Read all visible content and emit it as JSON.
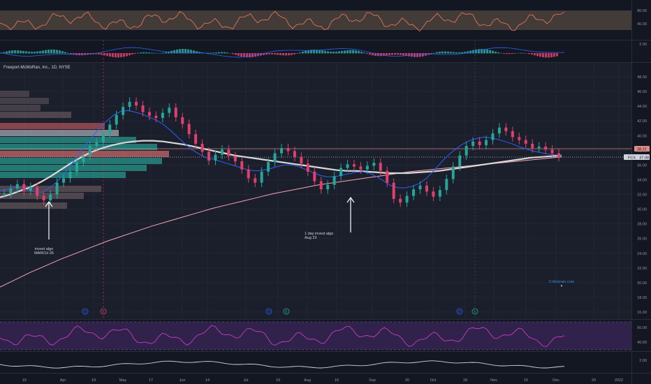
{
  "chart_data": {
    "type": "candlestick",
    "title": "Freeport-McMoRan, Inc., 1D, NYSE",
    "x_labels": [
      "15",
      "Apr",
      "19",
      "May",
      "17",
      "Jun",
      "14",
      "Jul",
      "19",
      "Aug",
      "16",
      "Sep",
      "20",
      "Oct",
      "18",
      "Nov",
      "15",
      "Dec",
      "20",
      "2022"
    ],
    "y_axis": {
      "ticks": [
        "48.00",
        "46.00",
        "44.00",
        "42.00",
        "40.00",
        "38.00",
        "36.00",
        "34.00",
        "32.00",
        "30.00",
        "28.00",
        "26.00",
        "24.00",
        "22.00",
        "20.00",
        "18.00",
        "16.00"
      ],
      "ylim": [
        16,
        48
      ]
    },
    "price_close": [
      32.1,
      32.8,
      33.4,
      32.5,
      33.0,
      31.8,
      31.2,
      32.0,
      33.6,
      34.2,
      35.1,
      36.4,
      37.2,
      38.6,
      39.1,
      40.3,
      41.5,
      42.8,
      43.9,
      44.6,
      44.1,
      43.2,
      42.7,
      42.4,
      43.1,
      43.8,
      42.5,
      41.6,
      40.2,
      38.9,
      37.8,
      36.6,
      37.4,
      38.1,
      37.2,
      36.5,
      35.4,
      34.2,
      33.6,
      35.1,
      36.4,
      37.6,
      38.3,
      37.9,
      37.1,
      36.2,
      35.1,
      33.8,
      32.7,
      33.3,
      34.5,
      35.6,
      36.1,
      35.8,
      35.4,
      35.9,
      36.3,
      35.2,
      33.6,
      31.4,
      30.9,
      31.8,
      32.7,
      33.2,
      32.4,
      31.7,
      32.6,
      34.1,
      35.8,
      37.3,
      38.6,
      39.2,
      38.7,
      39.4,
      40.3,
      41.1,
      40.6,
      39.8,
      39.4,
      38.9,
      38.3,
      38.5,
      38.1,
      37.6,
      37.08
    ],
    "ma_fast": [
      32.5,
      32.7,
      33.0,
      32.9,
      32.6,
      32.3,
      32.3,
      32.9,
      33.7,
      34.8,
      36.0,
      37.4,
      38.7,
      39.9,
      41.0,
      42.0,
      42.8,
      43.3,
      43.4,
      43.2,
      42.9,
      42.5,
      42.1,
      41.5,
      40.7,
      39.8,
      38.9,
      38.1,
      37.5,
      37.0,
      36.8,
      36.5,
      36.2,
      35.9,
      35.6,
      35.3,
      35.2,
      35.3,
      35.5,
      35.8,
      36.0,
      36.0,
      35.8,
      35.4,
      35.0,
      34.6,
      34.4,
      34.4,
      34.6,
      34.8,
      35.0,
      35.1,
      34.9,
      34.4,
      33.8,
      33.2,
      32.9,
      32.9,
      33.1,
      33.5,
      34.2,
      35.2,
      36.3,
      37.3,
      38.1,
      38.8,
      39.3,
      39.6,
      39.8,
      39.7,
      39.5,
      39.2,
      38.9,
      38.5,
      38.2,
      37.9,
      37.7,
      37.5,
      37.4,
      37.3
    ],
    "ma_slow": [
      31.6,
      32.0,
      32.5,
      33.0,
      33.7,
      34.5,
      35.4,
      36.3,
      37.1,
      37.8,
      38.3,
      38.7,
      39.0,
      39.2,
      39.3,
      39.3,
      39.2,
      39.0,
      38.8,
      38.5,
      38.2,
      37.9,
      37.6,
      37.3,
      37.1,
      36.9,
      36.7,
      36.5,
      36.3,
      36.1,
      35.9,
      35.7,
      35.5,
      35.3,
      35.2,
      35.2,
      35.1,
      35.0,
      34.9,
      34.9,
      34.9,
      35.0,
      35.1,
      35.2,
      35.4,
      35.6,
      35.8,
      36.0,
      36.2,
      36.4,
      36.6,
      36.8,
      37.0,
      37.1,
      37.2,
      37.3
    ],
    "ma_long": [
      19.4,
      20.4,
      21.4,
      22.3,
      23.2,
      24.0,
      24.8,
      25.6,
      26.3,
      27.0,
      27.7,
      28.3,
      28.9,
      29.5,
      30.1,
      30.6,
      31.1,
      31.6,
      32.1,
      32.5,
      32.9,
      33.3,
      33.6,
      33.9,
      34.2,
      34.5,
      34.8,
      35.1,
      35.3,
      35.5,
      35.7,
      35.9,
      36.1,
      36.3,
      36.5,
      36.7,
      36.9,
      37.1
    ],
    "last_price": "37.08",
    "last_price_label": "FCX",
    "marker_price": "38.21",
    "oscillator_top": {
      "ticks": [
        "80.00",
        "40.00"
      ]
    },
    "histogram": {
      "ticks": [
        "2.00"
      ]
    },
    "rsi": {
      "ticks": [
        "60.00",
        "40.00"
      ]
    },
    "bottom_line": {
      "ticks": [
        "2.00"
      ]
    },
    "annotations": [
      {
        "id": "march",
        "lines": [
          "invest algo",
          "MARCH 26"
        ]
      },
      {
        "id": "aug",
        "lines": [
          "1 day invest algo",
          "Aug 23"
        ]
      }
    ],
    "source_label": "Criticbrain.com",
    "event_markers": [
      "D",
      "E",
      "D",
      "E",
      "D",
      "E"
    ],
    "colors": {
      "background": "#131722",
      "up": "#26a69a",
      "down": "#e0406e",
      "ma_fast": "#2962ff",
      "ma_slow": "#d8d8d8",
      "ma_long": "#f8a3b6",
      "rsi": "#c53dc3",
      "oscillator": "#f27b5f",
      "volume_up": "#2aa99a",
      "volume_down": "#e57373"
    }
  }
}
